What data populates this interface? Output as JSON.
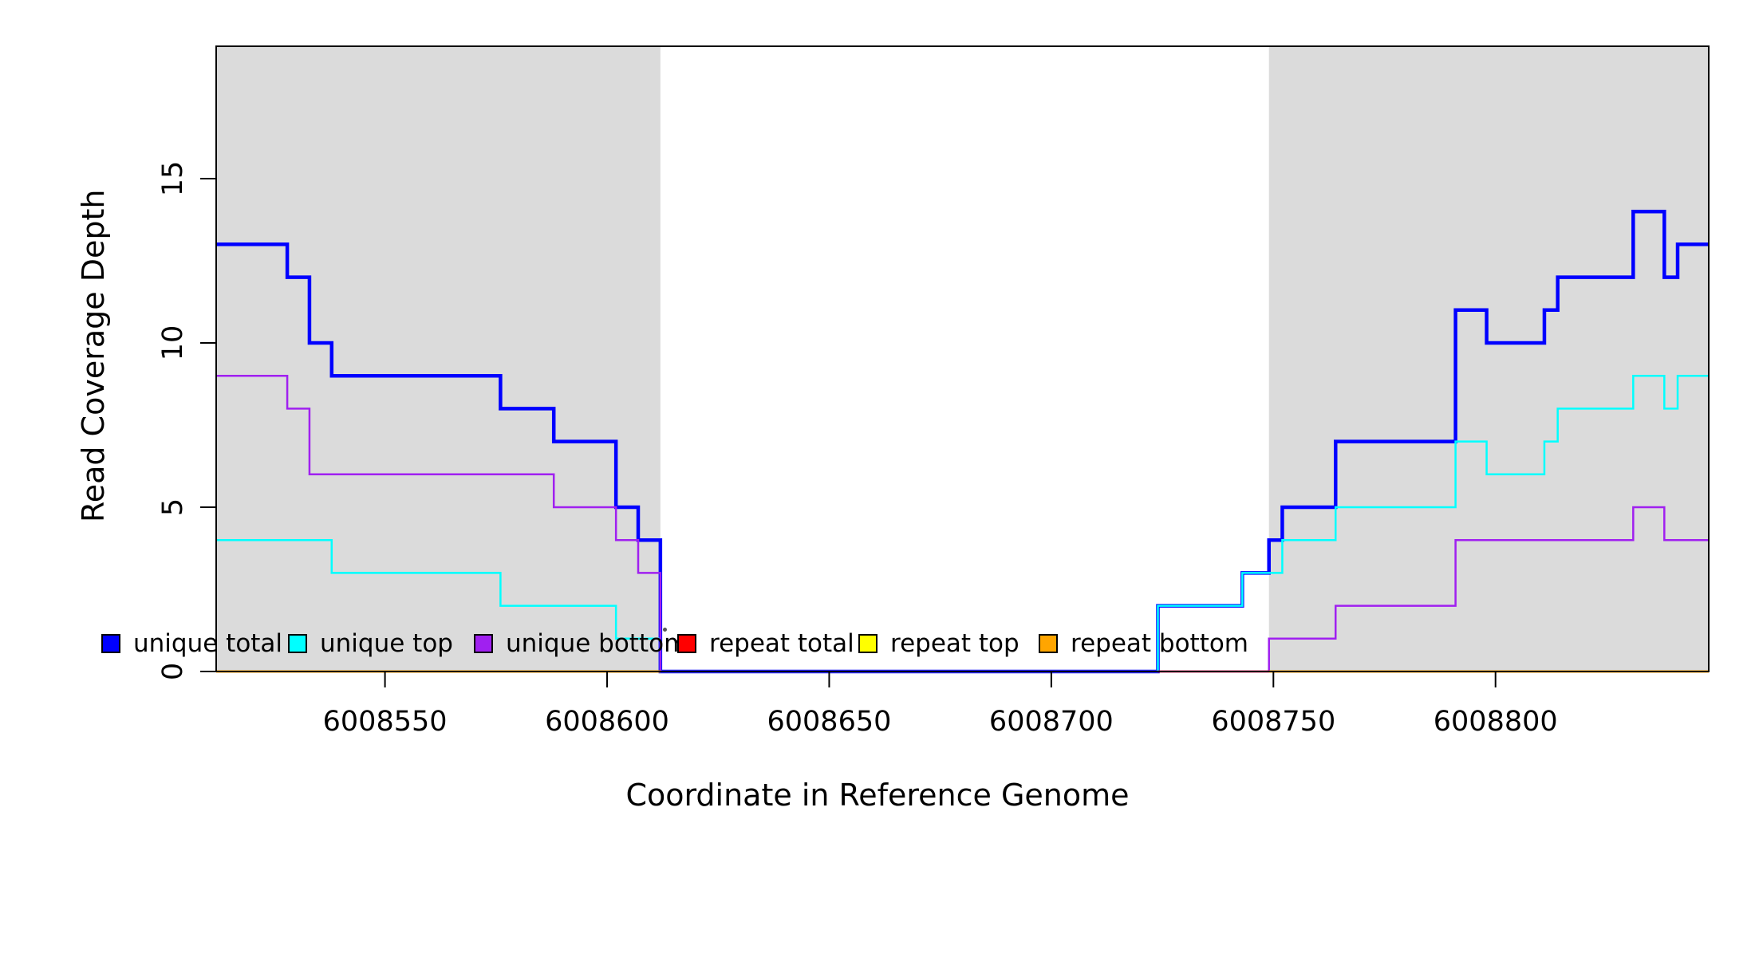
{
  "chart_data": {
    "type": "line",
    "subtype": "step-after-coverage-plot",
    "title": "",
    "xlabel": "Coordinate in Reference Genome",
    "ylabel": "Read Coverage Depth",
    "x_range": [
      6008512,
      6008848
    ],
    "y_range": [
      0,
      19
    ],
    "x_ticks": [
      6008550,
      6008600,
      6008650,
      6008700,
      6008750,
      6008800
    ],
    "y_ticks": [
      0,
      5,
      10,
      15
    ],
    "grid": "off",
    "legend_position": "bottom",
    "shading_color": "#DBDBDB",
    "repeat_regions": [
      [
        6008512,
        6008612
      ],
      [
        6008749,
        6008848
      ]
    ],
    "series": [
      {
        "name": "unique total",
        "color": "#0000FF",
        "line_width": 4.5,
        "segments": [
          {
            "end": 6008848,
            "points": [
              [
                6008512,
                13
              ],
              [
                6008528,
                12
              ],
              [
                6008533,
                10
              ],
              [
                6008538,
                9
              ],
              [
                6008576,
                8
              ],
              [
                6008588,
                7
              ],
              [
                6008602,
                5
              ],
              [
                6008607,
                4
              ],
              [
                6008612,
                0
              ],
              [
                6008724,
                2
              ],
              [
                6008743,
                3
              ],
              [
                6008749,
                4
              ],
              [
                6008752,
                5
              ],
              [
                6008764,
                7
              ],
              [
                6008791,
                11
              ],
              [
                6008798,
                10
              ],
              [
                6008811,
                11
              ],
              [
                6008814,
                12
              ],
              [
                6008831,
                14
              ],
              [
                6008838,
                12
              ],
              [
                6008841,
                13
              ]
            ]
          }
        ]
      },
      {
        "name": "unique top",
        "color": "#00FFFF",
        "line_width": 2.5,
        "segments": [
          {
            "end": 6008848,
            "points": [
              [
                6008512,
                4
              ],
              [
                6008538,
                3
              ],
              [
                6008576,
                2
              ],
              [
                6008602,
                1
              ],
              [
                6008612,
                0
              ],
              [
                6008724,
                2
              ],
              [
                6008743,
                3
              ],
              [
                6008752,
                4
              ],
              [
                6008764,
                5
              ],
              [
                6008791,
                7
              ],
              [
                6008798,
                6
              ],
              [
                6008811,
                7
              ],
              [
                6008814,
                8
              ],
              [
                6008831,
                9
              ],
              [
                6008838,
                8
              ],
              [
                6008841,
                9
              ]
            ]
          }
        ]
      },
      {
        "name": "unique bottom",
        "color": "#A020F0",
        "line_width": 2.5,
        "segments": [
          {
            "end": 6008848,
            "points": [
              [
                6008512,
                9
              ],
              [
                6008528,
                8
              ],
              [
                6008533,
                6
              ],
              [
                6008588,
                5
              ],
              [
                6008602,
                4
              ],
              [
                6008607,
                3
              ],
              [
                6008612,
                0
              ],
              [
                6008749,
                1
              ],
              [
                6008764,
                2
              ],
              [
                6008791,
                4
              ],
              [
                6008831,
                5
              ],
              [
                6008838,
                4
              ]
            ]
          }
        ]
      },
      {
        "name": "repeat total",
        "color": "#FF0000",
        "line_width": 2.5,
        "segments": [
          {
            "end": 6008612,
            "points": [
              [
                6008512,
                0
              ]
            ]
          },
          {
            "end": 6008848,
            "points": [
              [
                6008724,
                0
              ]
            ]
          }
        ]
      },
      {
        "name": "repeat top",
        "color": "#FFFF00",
        "line_width": 2.5,
        "segments": [
          {
            "end": 6008612,
            "points": [
              [
                6008512,
                0
              ]
            ]
          },
          {
            "end": 6008848,
            "points": [
              [
                6008749,
                0
              ]
            ]
          }
        ]
      },
      {
        "name": "repeat bottom",
        "color": "#FFA500",
        "line_width": 3,
        "segments": [
          {
            "end": 6008612,
            "points": [
              [
                6008512,
                0
              ]
            ]
          },
          {
            "end": 6008848,
            "points": [
              [
                6008749,
                0
              ]
            ]
          }
        ]
      }
    ]
  }
}
